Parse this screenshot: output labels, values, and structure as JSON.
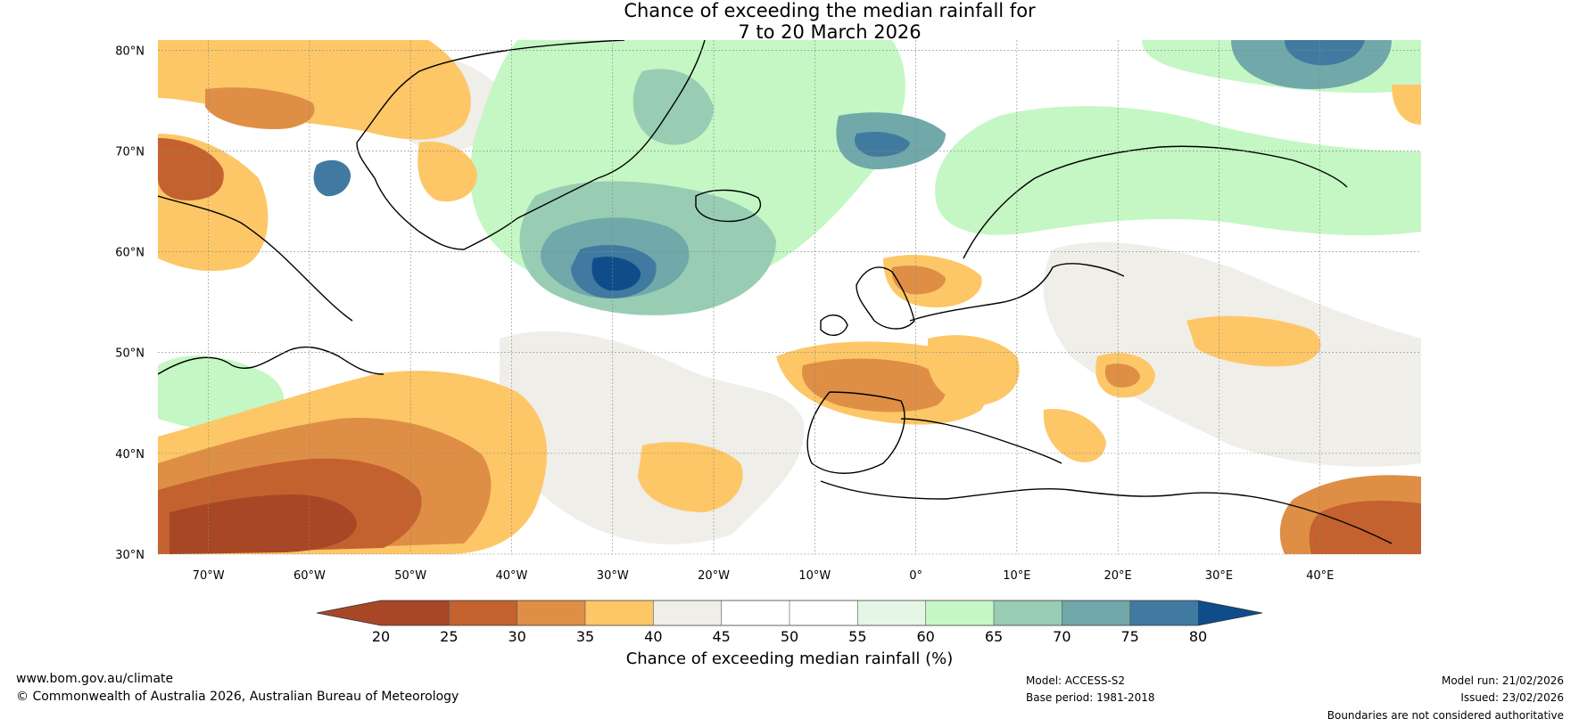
{
  "title": {
    "line1": "Chance of exceeding the median rainfall for",
    "line2": "7 to 20 March 2026"
  },
  "map": {
    "lat_labels": [
      "80°N",
      "70°N",
      "60°N",
      "50°N",
      "40°N",
      "30°N"
    ],
    "lon_labels": [
      "70°W",
      "60°W",
      "50°W",
      "40°W",
      "30°W",
      "20°W",
      "10°W",
      "0°",
      "10°E",
      "20°E",
      "30°E",
      "40°E"
    ],
    "lat_values": [
      80,
      70,
      60,
      50,
      40,
      30
    ],
    "lon_values": [
      -70,
      -60,
      -50,
      -40,
      -30,
      -20,
      -10,
      0,
      10,
      20,
      30,
      40
    ],
    "extent": {
      "lon_min": -75,
      "lon_max": 50,
      "lat_min": 30,
      "lat_max": 81
    }
  },
  "colorbar": {
    "label": "Chance of exceeding median rainfall (%)",
    "ticks": [
      "20",
      "25",
      "30",
      "35",
      "40",
      "45",
      "50",
      "55",
      "60",
      "65",
      "70",
      "75",
      "80"
    ],
    "colors": [
      "#a84726",
      "#c3622f",
      "#de8f45",
      "#fdc767",
      "#efeee9",
      "#ffffff",
      "#ffffff",
      "#e6f6e6",
      "#c4f7c4",
      "#98cdb3",
      "#71a8aa",
      "#417aa0",
      "#0f4d8a"
    ],
    "under_color": "#a84726",
    "over_color": "#0f4d8a"
  },
  "footer": {
    "website": "www.bom.gov.au/climate",
    "copyright": "© Commonwealth of Australia 2026, Australian Bureau of Meteorology",
    "model": "Model: ACCESS-S2",
    "base_period": "Base period: 1981-2018",
    "model_run": "Model run: 21/02/2026",
    "issued": "Issued: 23/02/2026",
    "disclaimer": "Boundaries are not considered authoritative"
  }
}
